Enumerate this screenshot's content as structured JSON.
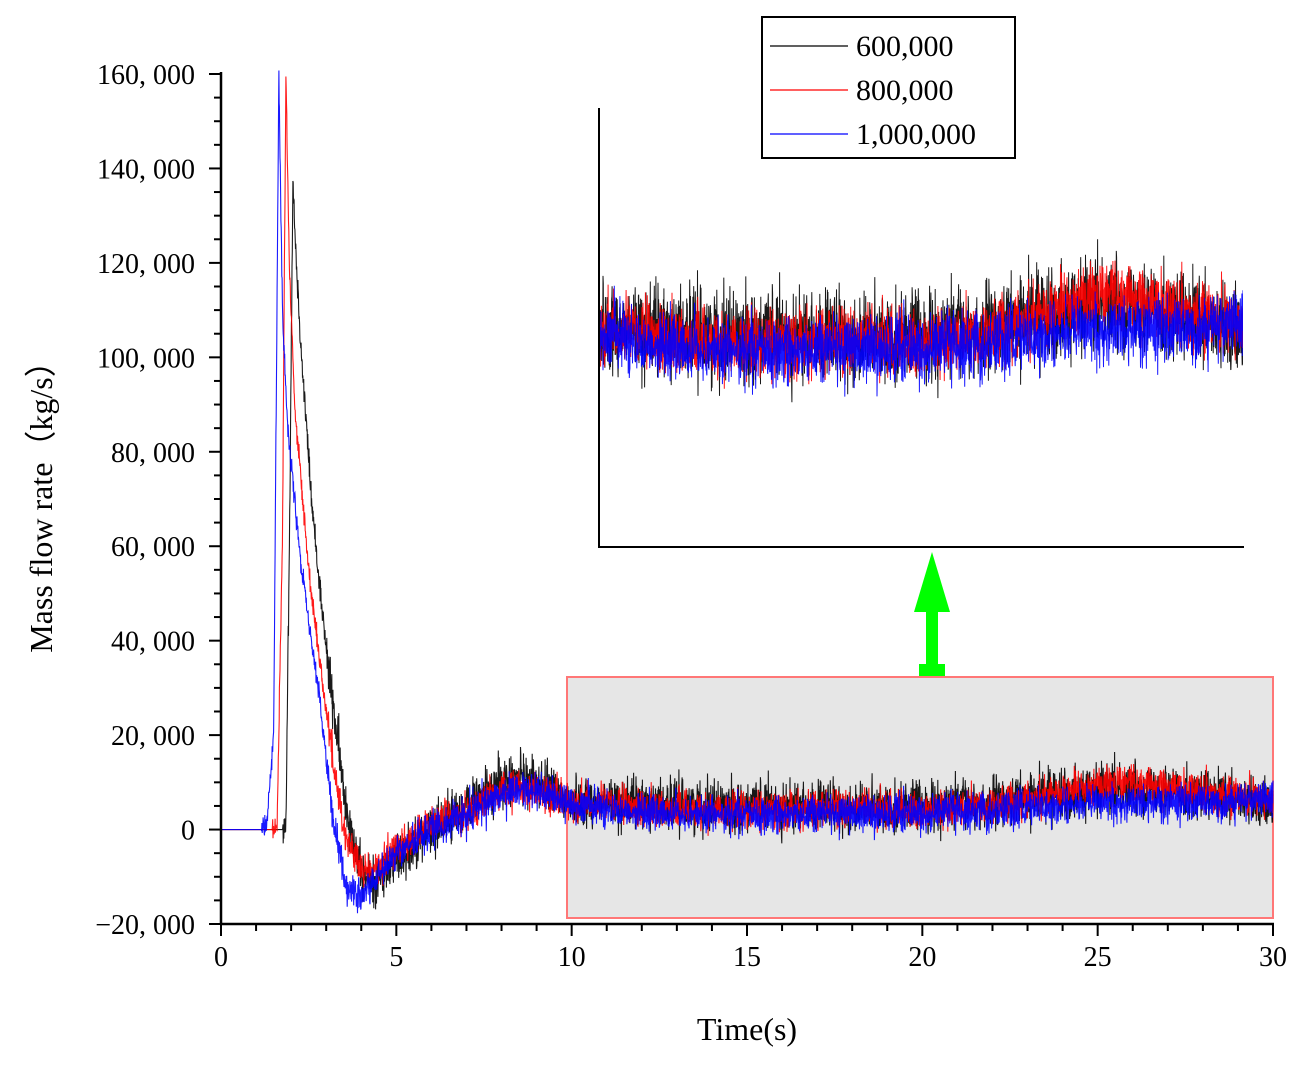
{
  "chart_data": {
    "type": "line",
    "title": "",
    "xlabel": "Time(s)",
    "ylabel": "Mass flow rate（kg/s）",
    "xlim": [
      0,
      30
    ],
    "ylim": [
      -20000,
      160000
    ],
    "x_ticks": [
      0,
      5,
      10,
      15,
      20,
      25,
      30
    ],
    "x_tick_labels": [
      "0",
      "5",
      "10",
      "15",
      "20",
      "25",
      "30"
    ],
    "y_ticks": [
      -20000,
      0,
      20000,
      40000,
      60000,
      80000,
      100000,
      120000,
      140000,
      160000
    ],
    "y_tick_labels": [
      "−20, 000",
      "0",
      "20, 000",
      "40, 000",
      "60, 000",
      "80, 000",
      "100, 000",
      "120, 000",
      "140, 000",
      "160, 000"
    ],
    "grid": false,
    "legend_position": "top-right",
    "series": [
      {
        "name": "600,000",
        "color": "#000000",
        "noise": 3800,
        "keypoints": [
          [
            0,
            0
          ],
          [
            1.75,
            0
          ],
          [
            1.85,
            500
          ],
          [
            1.95,
            60000
          ],
          [
            2.05,
            138000
          ],
          [
            2.15,
            120000
          ],
          [
            2.3,
            100000
          ],
          [
            2.6,
            68000
          ],
          [
            3.0,
            38000
          ],
          [
            3.5,
            8000
          ],
          [
            4.0,
            -10000
          ],
          [
            4.5,
            -11000
          ],
          [
            5.0,
            -6000
          ],
          [
            6.0,
            0
          ],
          [
            7.0,
            5000
          ],
          [
            8.0,
            10000
          ],
          [
            8.7,
            11000
          ],
          [
            9.5,
            8000
          ],
          [
            10.0,
            6000
          ],
          [
            12.0,
            5500
          ],
          [
            15.0,
            5000
          ],
          [
            18.0,
            4500
          ],
          [
            20.0,
            5000
          ],
          [
            22.0,
            5500
          ],
          [
            24.0,
            8000
          ],
          [
            25.0,
            8500
          ],
          [
            26.0,
            9000
          ],
          [
            27.0,
            9000
          ],
          [
            28.0,
            7000
          ],
          [
            29.0,
            6000
          ],
          [
            30.0,
            5000
          ]
        ]
      },
      {
        "name": "800,000",
        "color": "#ff0000",
        "noise": 2800,
        "keypoints": [
          [
            0,
            0
          ],
          [
            1.45,
            0
          ],
          [
            1.6,
            1000
          ],
          [
            1.75,
            60000
          ],
          [
            1.85,
            160000
          ],
          [
            1.95,
            120000
          ],
          [
            2.1,
            90000
          ],
          [
            2.5,
            55000
          ],
          [
            3.0,
            25000
          ],
          [
            3.5,
            0
          ],
          [
            4.0,
            -9000
          ],
          [
            4.5,
            -8000
          ],
          [
            5.0,
            -4000
          ],
          [
            6.0,
            1000
          ],
          [
            7.0,
            4000
          ],
          [
            8.0,
            8000
          ],
          [
            8.7,
            9000
          ],
          [
            9.5,
            7000
          ],
          [
            10.0,
            6000
          ],
          [
            12.0,
            4500
          ],
          [
            15.0,
            4000
          ],
          [
            18.0,
            4500
          ],
          [
            20.0,
            4000
          ],
          [
            22.0,
            5000
          ],
          [
            24.0,
            8000
          ],
          [
            25.0,
            9500
          ],
          [
            26.0,
            10000
          ],
          [
            27.0,
            9000
          ],
          [
            28.0,
            8000
          ],
          [
            29.0,
            7000
          ],
          [
            30.0,
            6000
          ]
        ]
      },
      {
        "name": "1,000,000",
        "color": "#0000ff",
        "noise": 2800,
        "keypoints": [
          [
            0,
            0
          ],
          [
            1.15,
            0
          ],
          [
            1.3,
            500
          ],
          [
            1.5,
            20000
          ],
          [
            1.65,
            160000
          ],
          [
            1.75,
            110000
          ],
          [
            1.9,
            85000
          ],
          [
            2.3,
            55000
          ],
          [
            2.8,
            28000
          ],
          [
            3.2,
            2000
          ],
          [
            3.6,
            -13000
          ],
          [
            4.0,
            -14000
          ],
          [
            4.5,
            -10000
          ],
          [
            5.0,
            -5000
          ],
          [
            6.0,
            0
          ],
          [
            7.0,
            3500
          ],
          [
            8.0,
            7000
          ],
          [
            8.7,
            8500
          ],
          [
            9.5,
            7000
          ],
          [
            10.0,
            5500
          ],
          [
            12.0,
            3500
          ],
          [
            15.0,
            3000
          ],
          [
            18.0,
            3500
          ],
          [
            20.0,
            3500
          ],
          [
            22.0,
            4000
          ],
          [
            24.0,
            5000
          ],
          [
            25.0,
            6000
          ],
          [
            26.0,
            5500
          ],
          [
            27.0,
            6000
          ],
          [
            28.0,
            5500
          ],
          [
            29.0,
            6000
          ],
          [
            30.0,
            6000
          ]
        ]
      }
    ],
    "inset": {
      "source_x_range": [
        10,
        30
      ],
      "source_y_range": [
        -20000,
        32000
      ],
      "arrow_color": "#00ff00",
      "highlight_fill": "#e6e6e6",
      "highlight_border": "#ff7777"
    }
  }
}
